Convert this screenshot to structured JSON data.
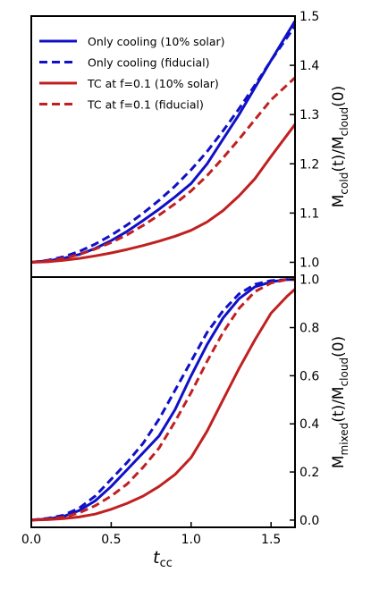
{
  "chart_data": [
    {
      "type": "line",
      "panel": "top",
      "ylabel": {
        "main": "M",
        "sub": "cold",
        "mid": "(t)/M",
        "sub2": "cloud",
        "end": "(0)"
      },
      "xlim": [
        0.0,
        1.65
      ],
      "ylim": [
        0.97,
        1.5
      ],
      "yticks": [
        1.0,
        1.1,
        1.2,
        1.3,
        1.4,
        1.5
      ],
      "ytick_labels": [
        "1.0",
        "1.1",
        "1.2",
        "1.3",
        "1.4",
        "1.5"
      ],
      "legend_position": "top-left",
      "series": [
        {
          "name": "Only cooling (10% solar)",
          "color": "#1010c8",
          "dash": "solid",
          "x": [
            0.0,
            0.1,
            0.2,
            0.3,
            0.4,
            0.5,
            0.6,
            0.7,
            0.8,
            0.9,
            1.0,
            1.1,
            1.2,
            1.3,
            1.4,
            1.5,
            1.65
          ],
          "y": [
            1.0,
            1.003,
            1.008,
            1.016,
            1.028,
            1.044,
            1.063,
            1.085,
            1.108,
            1.133,
            1.16,
            1.2,
            1.25,
            1.3,
            1.355,
            1.41,
            1.49
          ]
        },
        {
          "name": "Only cooling (fiducial)",
          "color": "#1010c8",
          "dash": "dashed",
          "x": [
            0.0,
            0.1,
            0.2,
            0.3,
            0.4,
            0.5,
            0.6,
            0.7,
            0.8,
            0.9,
            1.0,
            1.1,
            1.2,
            1.3,
            1.4,
            1.5,
            1.65
          ],
          "y": [
            1.0,
            1.004,
            1.011,
            1.022,
            1.037,
            1.055,
            1.076,
            1.1,
            1.126,
            1.155,
            1.188,
            1.225,
            1.267,
            1.312,
            1.36,
            1.41,
            1.48
          ]
        },
        {
          "name": "TC at f=0.1 (10% solar)",
          "color": "#c02020",
          "dash": "solid",
          "x": [
            0.0,
            0.1,
            0.2,
            0.3,
            0.4,
            0.5,
            0.6,
            0.7,
            0.8,
            0.9,
            1.0,
            1.1,
            1.2,
            1.3,
            1.4,
            1.5,
            1.65
          ],
          "y": [
            1.0,
            1.001,
            1.004,
            1.008,
            1.013,
            1.019,
            1.026,
            1.034,
            1.043,
            1.053,
            1.065,
            1.082,
            1.105,
            1.135,
            1.17,
            1.215,
            1.28
          ]
        },
        {
          "name": "TC at f=0.1 (fiducial)",
          "color": "#c02020",
          "dash": "dashed",
          "x": [
            0.0,
            0.1,
            0.2,
            0.3,
            0.4,
            0.5,
            0.6,
            0.7,
            0.8,
            0.9,
            1.0,
            1.1,
            1.2,
            1.3,
            1.4,
            1.5,
            1.65
          ],
          "y": [
            1.0,
            1.003,
            1.008,
            1.016,
            1.027,
            1.04,
            1.056,
            1.075,
            1.096,
            1.119,
            1.145,
            1.176,
            1.212,
            1.25,
            1.29,
            1.33,
            1.375
          ]
        }
      ]
    },
    {
      "type": "line",
      "panel": "bottom",
      "xlabel": {
        "main": "t",
        "sub": "cc"
      },
      "ylabel": {
        "main": "M",
        "sub": "mixed",
        "mid": "(t)/M",
        "sub2": "cloud",
        "end": "(0)"
      },
      "xlim": [
        0.0,
        1.65
      ],
      "ylim": [
        -0.03,
        1.01
      ],
      "xticks": [
        0.0,
        0.5,
        1.0,
        1.5
      ],
      "xtick_labels": [
        "0.0",
        "0.5",
        "1.0",
        "1.5"
      ],
      "yticks": [
        0.0,
        0.2,
        0.4,
        0.6,
        0.8,
        1.0
      ],
      "ytick_labels": [
        "0.0",
        "0.2",
        "0.4",
        "0.6",
        "0.8",
        "1.0"
      ],
      "series": [
        {
          "name": "Only cooling (10% solar)",
          "color": "#1010c8",
          "dash": "solid",
          "x": [
            0.0,
            0.1,
            0.2,
            0.3,
            0.4,
            0.5,
            0.6,
            0.7,
            0.8,
            0.9,
            1.0,
            1.1,
            1.2,
            1.3,
            1.4,
            1.5,
            1.6,
            1.65
          ],
          "y": [
            0.0,
            0.005,
            0.015,
            0.04,
            0.08,
            0.14,
            0.21,
            0.28,
            0.35,
            0.46,
            0.6,
            0.73,
            0.84,
            0.92,
            0.97,
            0.99,
            1.0,
            1.0
          ]
        },
        {
          "name": "Only cooling (fiducial)",
          "color": "#1010c8",
          "dash": "dashed",
          "x": [
            0.0,
            0.1,
            0.2,
            0.3,
            0.4,
            0.5,
            0.6,
            0.7,
            0.8,
            0.9,
            1.0,
            1.1,
            1.2,
            1.3,
            1.4,
            1.5,
            1.6,
            1.65
          ],
          "y": [
            0.0,
            0.007,
            0.02,
            0.05,
            0.1,
            0.17,
            0.24,
            0.32,
            0.42,
            0.54,
            0.66,
            0.78,
            0.87,
            0.94,
            0.98,
            0.995,
            1.0,
            1.0
          ]
        },
        {
          "name": "TC at f=0.1 (10% solar)",
          "color": "#c02020",
          "dash": "solid",
          "x": [
            0.0,
            0.1,
            0.2,
            0.3,
            0.4,
            0.5,
            0.6,
            0.7,
            0.8,
            0.9,
            1.0,
            1.1,
            1.2,
            1.3,
            1.4,
            1.5,
            1.6,
            1.65
          ],
          "y": [
            0.0,
            0.002,
            0.006,
            0.013,
            0.025,
            0.045,
            0.07,
            0.1,
            0.14,
            0.19,
            0.26,
            0.37,
            0.5,
            0.63,
            0.75,
            0.86,
            0.93,
            0.96
          ]
        },
        {
          "name": "TC at f=0.1 (fiducial)",
          "color": "#c02020",
          "dash": "dashed",
          "x": [
            0.0,
            0.1,
            0.2,
            0.3,
            0.4,
            0.5,
            0.6,
            0.7,
            0.8,
            0.9,
            1.0,
            1.1,
            1.2,
            1.3,
            1.4,
            1.5,
            1.6,
            1.65
          ],
          "y": [
            0.0,
            0.004,
            0.012,
            0.03,
            0.06,
            0.1,
            0.15,
            0.22,
            0.3,
            0.41,
            0.53,
            0.66,
            0.78,
            0.88,
            0.95,
            0.985,
            1.0,
            1.0
          ]
        }
      ]
    }
  ]
}
